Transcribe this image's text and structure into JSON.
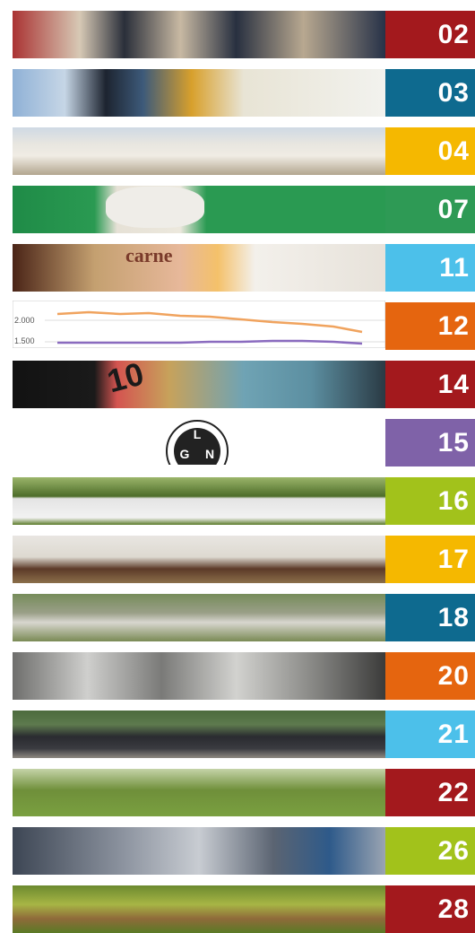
{
  "items": [
    {
      "page": "02",
      "color": "#a3191d"
    },
    {
      "page": "03",
      "color": "#0e6a8f"
    },
    {
      "page": "04",
      "color": "#f5b800"
    },
    {
      "page": "07",
      "color": "#2e9a55"
    },
    {
      "page": "11",
      "color": "#4cc0ea",
      "image_text": [
        "carne"
      ]
    },
    {
      "page": "12",
      "color": "#e5650f",
      "image_text": [
        "2.000",
        "1.500"
      ]
    },
    {
      "page": "14",
      "color": "#a3191d",
      "image_text": [
        "10"
      ]
    },
    {
      "page": "15",
      "color": "#7f62a8",
      "image_text": [
        "L",
        "G",
        "N"
      ]
    },
    {
      "page": "16",
      "color": "#a2c21b"
    },
    {
      "page": "17",
      "color": "#f5b800"
    },
    {
      "page": "18",
      "color": "#0e6a8f"
    },
    {
      "page": "20",
      "color": "#e5650f"
    },
    {
      "page": "21",
      "color": "#4cc0ea"
    },
    {
      "page": "22",
      "color": "#a3191d"
    },
    {
      "page": "26",
      "color": "#a2c21b"
    },
    {
      "page": "28",
      "color": "#a3191d"
    }
  ]
}
